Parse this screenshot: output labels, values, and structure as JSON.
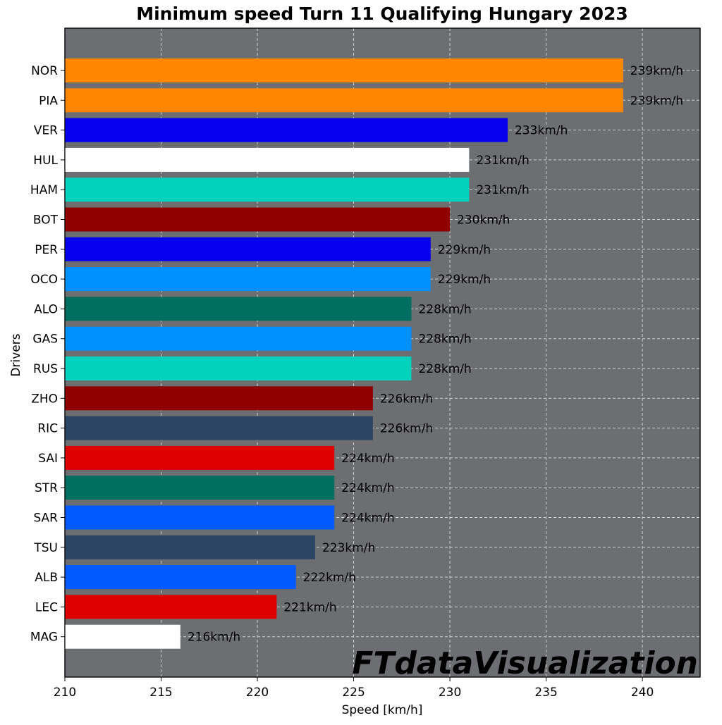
{
  "chart_data": {
    "type": "bar",
    "orientation": "horizontal",
    "title": "Minimum speed Turn 11 Qualifying Hungary 2023",
    "xlabel": "Speed [km/h]",
    "ylabel": "Drivers",
    "xlim": [
      210,
      243
    ],
    "xticks": [
      210,
      215,
      220,
      225,
      230,
      235,
      240
    ],
    "grid": true,
    "value_suffix": "km/h",
    "plot_background": "#6c6e72",
    "categories": [
      "NOR",
      "PIA",
      "VER",
      "HUL",
      "HAM",
      "BOT",
      "PER",
      "OCO",
      "ALO",
      "GAS",
      "RUS",
      "ZHO",
      "RIC",
      "SAI",
      "STR",
      "SAR",
      "TSU",
      "ALB",
      "LEC",
      "MAG"
    ],
    "values": [
      239,
      239,
      233,
      231,
      231,
      230,
      229,
      229,
      228,
      228,
      228,
      226,
      226,
      224,
      224,
      224,
      223,
      222,
      221,
      216
    ],
    "colors": [
      "#ff8700",
      "#ff8700",
      "#0600ef",
      "#ffffff",
      "#00d2be",
      "#900000",
      "#0600ef",
      "#0090ff",
      "#006f62",
      "#0090ff",
      "#00d2be",
      "#900000",
      "#2b4562",
      "#dc0000",
      "#006f62",
      "#005aff",
      "#2b4562",
      "#005aff",
      "#dc0000",
      "#ffffff"
    ],
    "data_labels": [
      "239km/h",
      "239km/h",
      "233km/h",
      "231km/h",
      "231km/h",
      "230km/h",
      "229km/h",
      "229km/h",
      "228km/h",
      "228km/h",
      "228km/h",
      "226km/h",
      "226km/h",
      "224km/h",
      "224km/h",
      "224km/h",
      "223km/h",
      "222km/h",
      "221km/h",
      "216km/h"
    ],
    "watermark": "FTdataVisualization"
  }
}
